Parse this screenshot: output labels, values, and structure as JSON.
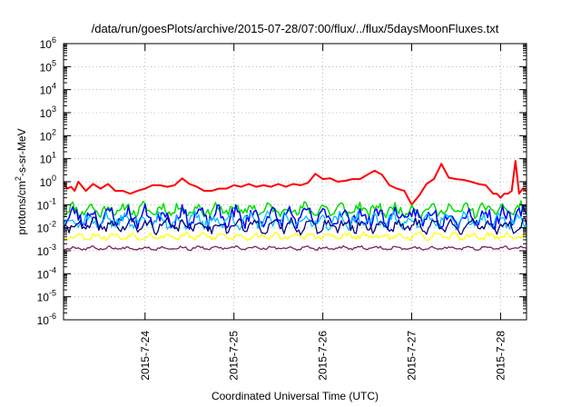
{
  "chart_data": {
    "type": "line",
    "title": "/data/run/goesPlots/archive/2015-07-28/07:00/flux/../flux/5daysMoonFluxes.txt",
    "xlabel": "Coordinated Universal Time (UTC)",
    "ylabel": "protons/cm2-s-sr-MeV",
    "ylabel_parts": {
      "pre": "protons/cm",
      "sup": "2",
      "post": "-s-sr-MeV"
    },
    "yscale": "log",
    "ylim_exp": [
      -6,
      6
    ],
    "ytick_exponents": [
      -6,
      -5,
      -4,
      -3,
      -2,
      -1,
      0,
      1,
      2,
      3,
      4,
      5,
      6
    ],
    "ytick_base": "10",
    "xlim": [
      "2015-07-23 02:00",
      "2015-07-28 07:00"
    ],
    "x_tick_labels": [
      "2015-7-24",
      "2015-7-25",
      "2015-7-26",
      "2015-7-27",
      "2015-7-28"
    ],
    "grid": true,
    "series": [
      {
        "color": "#ff0000",
        "width": 2.0,
        "x": [
          0.0,
          1.0,
          2.0,
          3.0,
          4.0,
          6.0,
          8.0,
          10.0,
          12.0,
          14.0,
          16.0,
          18.0,
          20.0,
          22.0,
          24.0,
          26.0,
          28.0,
          30.0,
          32.0,
          34.0,
          36.0,
          38.0,
          40.0,
          42.0,
          44.0,
          46.0,
          48.0,
          50.0,
          52.0,
          54.0,
          56.0,
          58.0,
          60.0,
          62.0,
          64.0,
          66.0,
          68.0,
          70.0,
          72.0,
          74.0,
          76.0,
          78.0,
          80.0,
          82.0,
          84.0,
          86.0,
          88.0,
          90.0,
          92.0,
          94.0,
          96.0,
          98.0,
          100.0,
          102.0,
          104.0,
          106.0,
          108.0,
          110.0,
          112.0,
          114.0,
          116.0,
          117.0,
          118.0,
          119.0,
          120.0,
          121.0,
          122.0,
          123.0,
          124.0,
          125.0
        ],
        "y": [
          0.9,
          0.5,
          0.6,
          0.4,
          1.0,
          0.4,
          0.8,
          0.5,
          0.8,
          0.4,
          0.4,
          0.3,
          0.4,
          0.5,
          0.7,
          0.7,
          0.6,
          0.7,
          1.4,
          0.8,
          0.6,
          0.4,
          0.4,
          0.5,
          0.5,
          0.7,
          0.6,
          0.8,
          0.6,
          0.7,
          0.6,
          0.8,
          0.6,
          0.8,
          0.7,
          0.9,
          2.2,
          1.3,
          1.4,
          1.0,
          1.1,
          1.3,
          1.3,
          2.0,
          3.0,
          2.0,
          0.7,
          0.5,
          0.4,
          0.1,
          0.25,
          0.8,
          1.3,
          6.0,
          1.5,
          1.3,
          1.2,
          1.0,
          0.8,
          0.7,
          0.3,
          0.3,
          0.2,
          0.3,
          0.3,
          0.4,
          8.0,
          0.3,
          0.5,
          0.4
        ]
      },
      {
        "color": "#00dd00",
        "width": 1.5,
        "base": 0.06,
        "amp": 0.2,
        "seed": 11
      },
      {
        "color": "#0000ff",
        "width": 1.5,
        "base": 0.03,
        "amp": 0.28,
        "seed": 23
      },
      {
        "color": "#00bfff",
        "width": 1.3,
        "base": 0.02,
        "amp": 0.22,
        "seed": 37
      },
      {
        "color": "#00007f",
        "width": 1.3,
        "base": 0.012,
        "amp": 0.2,
        "seed": 41
      },
      {
        "color": "#ffff00",
        "width": 1.3,
        "base": 0.0042,
        "amp": 0.1,
        "seed": 53
      },
      {
        "color": "#7f1f5f",
        "width": 1.3,
        "base": 0.0013,
        "amp": 0.05,
        "seed": 67
      }
    ]
  }
}
